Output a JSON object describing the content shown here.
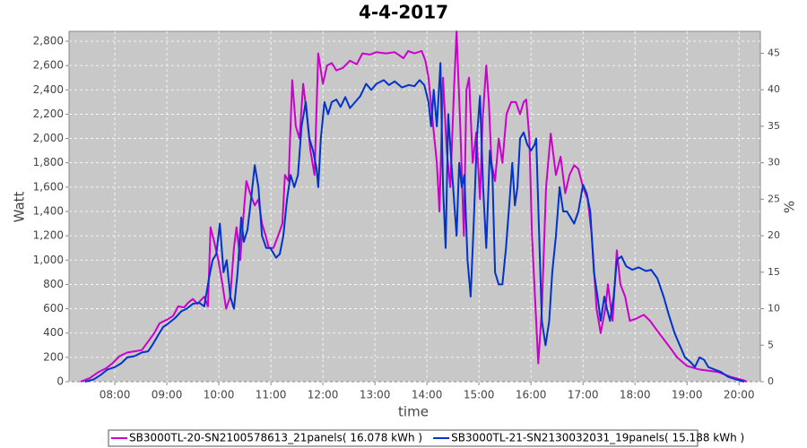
{
  "chart_data": {
    "type": "line",
    "title": "4-4-2017",
    "x_label": "time",
    "y_label": "Watt",
    "y2_label": "%",
    "xlim": [
      7.12,
      20.41
    ],
    "xticks": [
      {
        "value": 8,
        "label": "08:00"
      },
      {
        "value": 9,
        "label": "09:00"
      },
      {
        "value": 10,
        "label": "10:00"
      },
      {
        "value": 11,
        "label": "11:00"
      },
      {
        "value": 12,
        "label": "12:00"
      },
      {
        "value": 13,
        "label": "13:00"
      },
      {
        "value": 14,
        "label": "14:00"
      },
      {
        "value": 15,
        "label": "15:00"
      },
      {
        "value": 16,
        "label": "16:00"
      },
      {
        "value": 17,
        "label": "17:00"
      },
      {
        "value": 18,
        "label": "18:00"
      },
      {
        "value": 19,
        "label": "19:00"
      },
      {
        "value": 20,
        "label": "20:00"
      }
    ],
    "ylim": [
      0,
      2881
    ],
    "yticks": [
      0,
      200,
      400,
      600,
      800,
      {
        "value": 1000,
        "label": "1,000"
      },
      {
        "value": 1200,
        "label": "1,200"
      },
      {
        "value": 1400,
        "label": "1,400"
      },
      {
        "value": 1600,
        "label": "1,600"
      },
      {
        "value": 1800,
        "label": "1,800"
      },
      {
        "value": 2000,
        "label": "2,000"
      },
      {
        "value": 2200,
        "label": "2,200"
      },
      {
        "value": 2400,
        "label": "2,400"
      },
      {
        "value": 2600,
        "label": "2,600"
      },
      {
        "value": 2800,
        "label": "2,800"
      }
    ],
    "y2lim": [
      0,
      48
    ],
    "y2ticks": [
      0,
      5,
      10,
      15,
      20,
      25,
      30,
      35,
      40,
      45
    ],
    "grid": true,
    "legend": "bottom",
    "series": [
      {
        "name": "SB3000TL-20-SN2100578613_21panels( 16.078 kWh )",
        "color": "#cc00cc",
        "x": [
          7.34,
          7.52,
          7.69,
          7.83,
          7.95,
          8.09,
          8.24,
          8.38,
          8.52,
          8.64,
          8.76,
          8.86,
          9.0,
          9.12,
          9.22,
          9.33,
          9.41,
          9.5,
          9.59,
          9.72,
          9.79,
          9.84,
          9.91,
          9.99,
          10.07,
          10.14,
          10.22,
          10.29,
          10.34,
          10.41,
          10.46,
          10.53,
          10.6,
          10.69,
          10.76,
          10.83,
          10.9,
          10.96,
          11.05,
          11.14,
          11.22,
          11.27,
          11.34,
          11.41,
          11.48,
          11.55,
          11.62,
          11.69,
          11.76,
          11.84,
          11.91,
          12.0,
          12.08,
          12.17,
          12.26,
          12.38,
          12.52,
          12.65,
          12.76,
          12.9,
          13.03,
          13.21,
          13.38,
          13.55,
          13.64,
          13.76,
          13.9,
          13.97,
          14.03,
          14.12,
          14.19,
          14.24,
          14.31,
          14.38,
          14.45,
          14.52,
          14.57,
          14.64,
          14.71,
          14.76,
          14.81,
          14.88,
          14.95,
          15.02,
          15.07,
          15.14,
          15.19,
          15.24,
          15.31,
          15.38,
          15.45,
          15.53,
          15.62,
          15.71,
          15.79,
          15.86,
          15.91,
          15.97,
          16.02,
          16.14,
          16.21,
          16.29,
          16.38,
          16.48,
          16.57,
          16.66,
          16.74,
          16.83,
          16.91,
          17.0,
          17.09,
          17.17,
          17.26,
          17.34,
          17.43,
          17.48,
          17.57,
          17.65,
          17.72,
          17.81,
          17.9,
          18.03,
          18.17,
          18.29,
          18.46,
          18.64,
          18.81,
          19.0,
          19.24,
          19.59,
          19.84,
          20.1,
          20.15
        ],
        "values": [
          0,
          30,
          80,
          110,
          150,
          210,
          240,
          250,
          260,
          330,
          400,
          480,
          510,
          540,
          620,
          610,
          650,
          680,
          640,
          700,
          620,
          1270,
          1150,
          1000,
          800,
          600,
          700,
          1100,
          1270,
          1000,
          1300,
          1650,
          1550,
          1450,
          1500,
          1300,
          1200,
          1100,
          1100,
          1200,
          1300,
          1700,
          1650,
          2480,
          2100,
          2000,
          2450,
          2200,
          1900,
          1700,
          2700,
          2450,
          2600,
          2620,
          2560,
          2580,
          2640,
          2610,
          2700,
          2690,
          2710,
          2700,
          2710,
          2660,
          2720,
          2700,
          2720,
          2640,
          2500,
          2100,
          1800,
          1400,
          2500,
          1900,
          1600,
          2400,
          2880,
          2100,
          1200,
          2400,
          2500,
          1800,
          2050,
          1500,
          2150,
          2600,
          2300,
          1800,
          1650,
          2000,
          1800,
          2200,
          2300,
          2300,
          2200,
          2300,
          2320,
          2000,
          1200,
          150,
          600,
          1600,
          2040,
          1700,
          1850,
          1550,
          1700,
          1780,
          1750,
          1600,
          1500,
          1200,
          600,
          400,
          600,
          800,
          500,
          1080,
          800,
          700,
          500,
          520,
          550,
          500,
          400,
          300,
          200,
          130,
          100,
          80,
          40,
          10,
          0
        ]
      },
      {
        "name": "SB3000TL-21-SN2130032031_19panels( 15.188 kWh )",
        "color": "#0033cc",
        "x": [
          7.43,
          7.6,
          7.74,
          7.86,
          8.0,
          8.12,
          8.24,
          8.38,
          8.52,
          8.64,
          8.72,
          8.83,
          8.93,
          9.03,
          9.15,
          9.28,
          9.38,
          9.5,
          9.62,
          9.72,
          9.81,
          9.88,
          9.95,
          10.02,
          10.09,
          10.15,
          10.22,
          10.29,
          10.36,
          10.43,
          10.48,
          10.55,
          10.62,
          10.69,
          10.76,
          10.83,
          10.91,
          10.99,
          11.1,
          11.17,
          11.24,
          11.31,
          11.38,
          11.45,
          11.52,
          11.59,
          11.67,
          11.74,
          11.81,
          11.88,
          11.91,
          11.96,
          12.03,
          12.1,
          12.17,
          12.26,
          12.34,
          12.43,
          12.52,
          12.62,
          12.72,
          12.83,
          12.93,
          13.03,
          13.17,
          13.27,
          13.38,
          13.52,
          13.65,
          13.76,
          13.86,
          13.95,
          14.03,
          14.08,
          14.13,
          14.19,
          14.26,
          14.31,
          14.36,
          14.41,
          14.47,
          14.52,
          14.57,
          14.62,
          14.67,
          14.72,
          14.78,
          14.84,
          14.9,
          14.96,
          15.02,
          15.08,
          15.14,
          15.21,
          15.26,
          15.31,
          15.38,
          15.45,
          15.52,
          15.59,
          15.64,
          15.69,
          15.74,
          15.79,
          15.86,
          15.93,
          16.0,
          16.07,
          16.1,
          16.15,
          16.21,
          16.28,
          16.35,
          16.41,
          16.48,
          16.55,
          16.62,
          16.69,
          16.76,
          16.83,
          16.91,
          17.0,
          17.07,
          17.14,
          17.21,
          17.28,
          17.34,
          17.41,
          17.46,
          17.52,
          17.59,
          17.65,
          17.74,
          17.83,
          17.95,
          18.07,
          18.21,
          18.31,
          18.43,
          18.55,
          18.65,
          18.76,
          18.86,
          18.96,
          19.07,
          19.15,
          19.24,
          19.33,
          19.41,
          19.53,
          19.65,
          19.79,
          19.93,
          20.1
        ],
        "values": [
          0,
          20,
          60,
          100,
          120,
          150,
          200,
          210,
          240,
          250,
          300,
          380,
          450,
          480,
          520,
          580,
          600,
          640,
          650,
          620,
          850,
          1000,
          1050,
          1300,
          900,
          1000,
          700,
          600,
          900,
          1350,
          1150,
          1250,
          1500,
          1780,
          1600,
          1200,
          1100,
          1100,
          1020,
          1050,
          1200,
          1500,
          1700,
          1600,
          1700,
          2100,
          2300,
          2000,
          1900,
          1750,
          1600,
          2000,
          2300,
          2200,
          2300,
          2320,
          2260,
          2340,
          2250,
          2300,
          2350,
          2450,
          2400,
          2450,
          2480,
          2440,
          2470,
          2420,
          2440,
          2430,
          2480,
          2440,
          2300,
          2100,
          2400,
          2100,
          2620,
          1600,
          1100,
          2200,
          1800,
          1500,
          1200,
          1800,
          1600,
          1700,
          1000,
          700,
          1300,
          2000,
          2350,
          1600,
          1100,
          1900,
          1700,
          900,
          800,
          800,
          1100,
          1500,
          1800,
          1450,
          1600,
          2000,
          2050,
          1950,
          1900,
          1950,
          2000,
          1300,
          500,
          300,
          500,
          900,
          1200,
          1600,
          1400,
          1400,
          1350,
          1300,
          1400,
          1620,
          1550,
          1400,
          900,
          700,
          500,
          700,
          600,
          500,
          700,
          1000,
          1030,
          950,
          920,
          940,
          910,
          920,
          850,
          700,
          550,
          400,
          300,
          200,
          160,
          120,
          200,
          180,
          120,
          100,
          80,
          40,
          20,
          0
        ]
      }
    ]
  }
}
